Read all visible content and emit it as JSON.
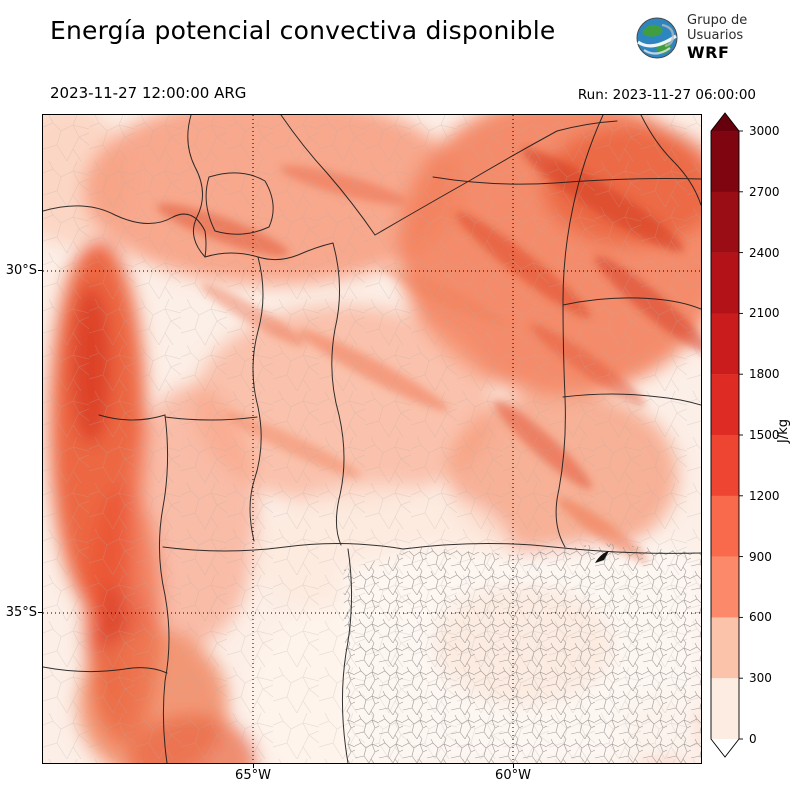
{
  "header": {
    "title": "Energía potencial convectiva disponible",
    "logo": {
      "line1": "Grupo de",
      "line2": "Usuarios",
      "line3": "WRF"
    }
  },
  "subheader": {
    "valid_time": "2023-11-27 12:00:00 ARG",
    "run_label": "Run: 2023-11-27 06:00:00"
  },
  "axes": {
    "lat_labels": [
      "30°S",
      "35°S"
    ],
    "lon_labels": [
      "65°W",
      "60°W"
    ]
  },
  "colorbar": {
    "units": "J/kg",
    "ticks": [
      "3000",
      "2700",
      "2400",
      "2100",
      "1800",
      "1500",
      "1200",
      "900",
      "600",
      "300",
      "0"
    ],
    "band_colors_top_to_bottom": [
      "#7f0611",
      "#9b0d14",
      "#b31218",
      "#ca1c1d",
      "#de2c24",
      "#ee4533",
      "#f9694c",
      "#fc8a6a",
      "#fcc3ab",
      "#fdece2"
    ],
    "over_color": "#65000c",
    "under_color": "#ffffff"
  }
}
